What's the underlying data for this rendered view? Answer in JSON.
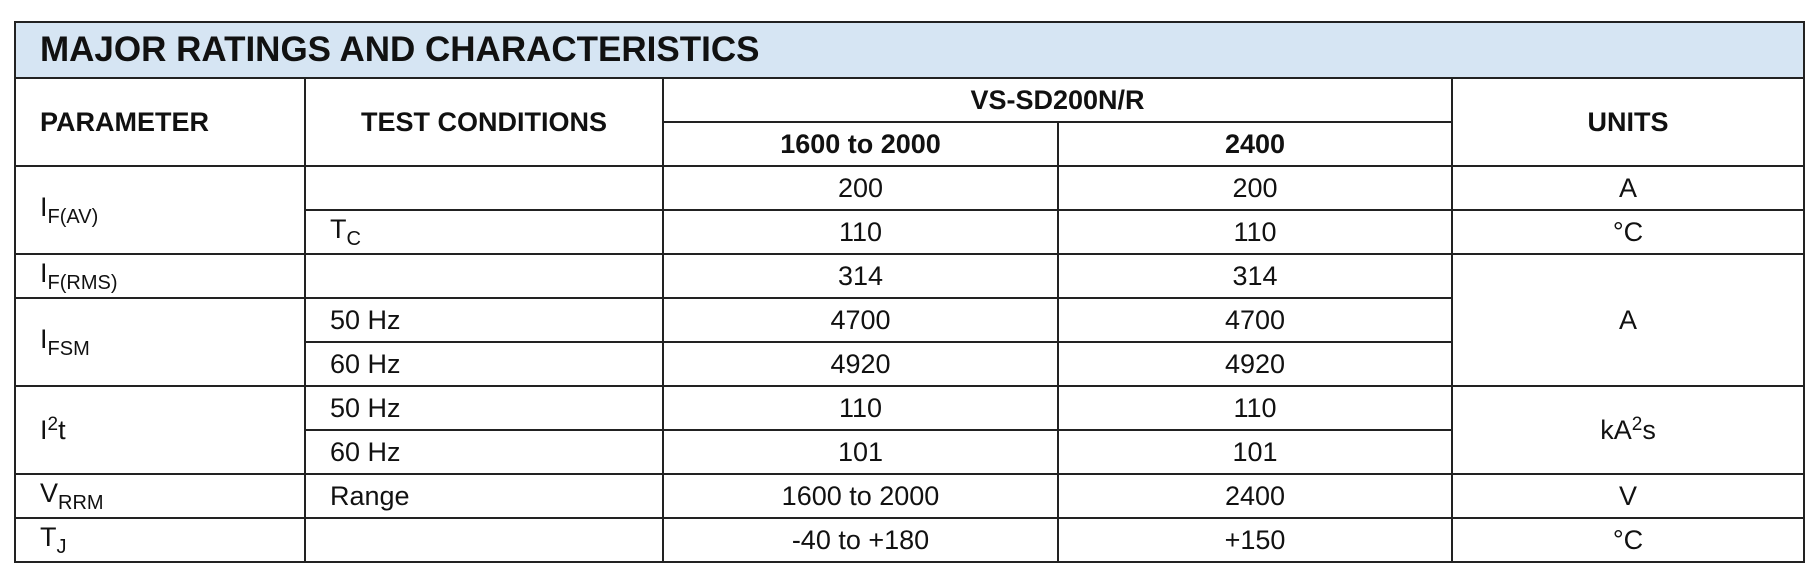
{
  "table": {
    "title": "MAJOR RATINGS AND CHARACTERISTICS",
    "headers": {
      "parameter": "PARAMETER",
      "test_conditions": "TEST CONDITIONS",
      "device": "VS-SD200N/R",
      "columns": [
        "1600 to 2000",
        "2400"
      ],
      "units": "UNITS"
    },
    "rows": [
      {
        "parameter": {
          "symbol": "I",
          "subscript": "F(AV)"
        },
        "values": [
          200,
          200
        ],
        "unit": "A"
      },
      {
        "condition": {
          "symbol": "T",
          "subscript": "C"
        },
        "values": [
          110,
          110
        ],
        "unit": "°C"
      },
      {
        "parameter": {
          "symbol": "I",
          "subscript": "F(RMS)"
        },
        "values": [
          314,
          314
        ],
        "unit": "A"
      },
      {
        "parameter": {
          "symbol": "I",
          "subscript": "FSM"
        },
        "condition": "50 Hz",
        "values": [
          4700,
          4700
        ]
      },
      {
        "condition": "60 Hz",
        "values": [
          4920,
          4920
        ]
      },
      {
        "parameter": {
          "symbol": "I",
          "superscript": "2",
          "suffix": "t"
        },
        "condition": "50 Hz",
        "values": [
          110,
          110
        ],
        "unit": {
          "symbol": "kA",
          "superscript": "2",
          "suffix": "s"
        }
      },
      {
        "condition": "60 Hz",
        "values": [
          101,
          101
        ]
      },
      {
        "parameter": {
          "symbol": "V",
          "subscript": "RRM"
        },
        "condition": "Range",
        "values": [
          "1600 to 2000",
          2400
        ],
        "unit": "V"
      },
      {
        "parameter": {
          "symbol": "T",
          "subscript": "J"
        },
        "values": [
          "-40 to +180",
          "+150"
        ],
        "unit": "°C"
      }
    ]
  }
}
